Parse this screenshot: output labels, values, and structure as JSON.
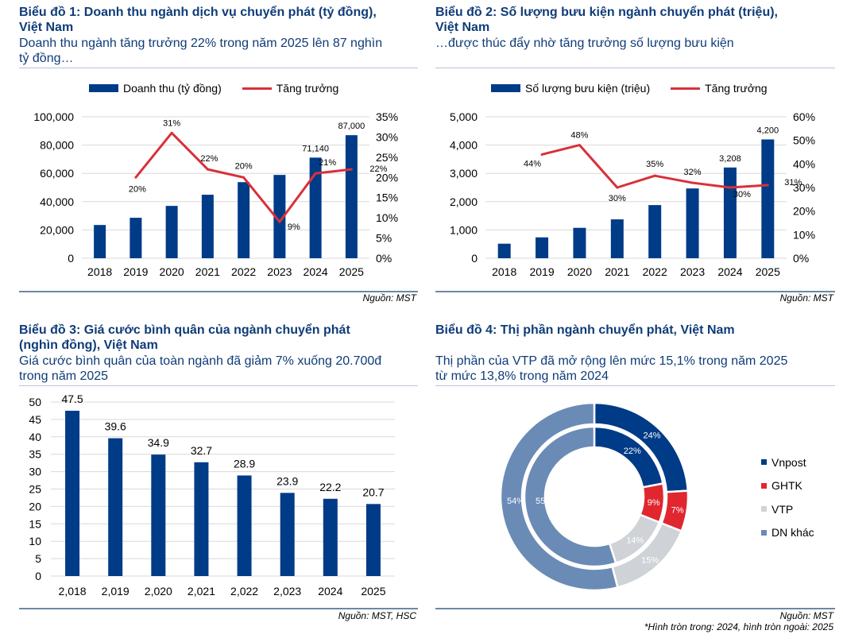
{
  "colors": {
    "bar": "#003b87",
    "line": "#d9303a",
    "grid": "#d9d9d9",
    "title": "#0f3c78",
    "vnpost": "#003b87",
    "ghtk": "#e0262f",
    "vtp": "#cfd3d8",
    "other": "#6a8bb5"
  },
  "panels": [
    {
      "title_line1": "Biểu đồ 1: Doanh thu ngành dịch vụ chuyển phát (tỷ đồng),",
      "title_line2": "Việt Nam",
      "subtitle_line1": "Doanh thu ngành tăng trưởng 22% trong năm 2025 lên 87 nghìn",
      "subtitle_line2": "tỷ đồng…",
      "source": "Nguồn: MST"
    },
    {
      "title_line1": "Biểu đồ 2: Số lượng bưu kiện ngành chuyển phát (triệu),",
      "title_line2": "Việt Nam",
      "subtitle_line1": "…được thúc đẩy nhờ tăng trưởng số lượng bưu kiện",
      "subtitle_line2": "",
      "source": "Nguồn: MST"
    },
    {
      "title_line1": "Biểu đồ 3: Giá cước bình quân của ngành chuyển phát",
      "title_line2": "(nghìn đồng), Việt Nam",
      "subtitle_line1": "Giá cước bình quân của toàn ngành đã giảm 7% xuống 20.700đ",
      "subtitle_line2": "trong năm 2025",
      "source": "Nguồn: MST, HSC"
    },
    {
      "title_line1": "Biểu đồ 4: Thị phần ngành chuyển phát, Việt Nam",
      "title_line2": "",
      "subtitle_line1": "Thị phần của VTP đã mở rộng lên mức 15,1% trong năm 2025",
      "subtitle_line2": "từ mức 13,8% trong năm 2024",
      "source": "Nguồn: MST",
      "note": "*Hình tròn trong: 2024, hình tròn ngoài: 2025"
    }
  ],
  "chart_data": [
    {
      "type": "bar",
      "title": "Biểu đồ 1: Doanh thu ngành dịch vụ chuyển phát (tỷ đồng), Việt Nam",
      "categories": [
        "2018",
        "2019",
        "2020",
        "2021",
        "2022",
        "2023",
        "2024",
        "2025"
      ],
      "series": [
        {
          "name": "Doanh thu (tỷ đồng)",
          "type": "bar",
          "axis": "left",
          "values": [
            23500,
            28600,
            37000,
            44900,
            53800,
            58900,
            71140,
            87000
          ],
          "labels": [
            "",
            "",
            "",
            "",
            "",
            "",
            "71,140",
            "87,000"
          ]
        },
        {
          "name": "Tăng trưởng",
          "type": "line",
          "axis": "right",
          "values": [
            null,
            0.2,
            0.31,
            0.22,
            0.2,
            0.09,
            0.21,
            0.22
          ],
          "labels": [
            "",
            "20%",
            "31%",
            "22%",
            "20%",
            "9%",
            "21%",
            "22%"
          ]
        }
      ],
      "yleft": {
        "min": 0,
        "max": 100000,
        "ticks": [
          "0",
          "20,000",
          "40,000",
          "60,000",
          "80,000",
          "100,000"
        ]
      },
      "yright": {
        "min": 0,
        "max": 0.35,
        "ticks": [
          "0%",
          "5%",
          "10%",
          "15%",
          "20%",
          "25%",
          "30%",
          "35%"
        ]
      },
      "legend": "top",
      "grid": true
    },
    {
      "type": "bar",
      "title": "Biểu đồ 2: Số lượng bưu kiện ngành chuyển phát (triệu), Việt Nam",
      "categories": [
        "2018",
        "2019",
        "2020",
        "2021",
        "2022",
        "2023",
        "2024",
        "2025"
      ],
      "series": [
        {
          "name": "Số lượng bưu kiện (triệu)",
          "type": "bar",
          "axis": "left",
          "values": [
            514,
            738,
            1075,
            1374,
            1879,
            2467,
            3208,
            4200
          ],
          "labels": [
            "",
            "",
            "",
            "",
            "",
            "",
            "3,208",
            "4,200"
          ]
        },
        {
          "name": "Tăng trưởng",
          "type": "line",
          "axis": "right",
          "values": [
            null,
            0.44,
            0.48,
            0.3,
            0.35,
            0.32,
            0.3,
            0.31
          ],
          "labels": [
            "",
            "44%",
            "48%",
            "30%",
            "35%",
            "32%",
            "30%",
            "31%"
          ]
        }
      ],
      "yleft": {
        "min": 0,
        "max": 5000,
        "ticks": [
          "0",
          "1,000",
          "2,000",
          "3,000",
          "4,000",
          "5,000"
        ]
      },
      "yright": {
        "min": 0,
        "max": 0.6,
        "ticks": [
          "0%",
          "10%",
          "20%",
          "30%",
          "40%",
          "50%",
          "60%"
        ]
      },
      "legend": "top",
      "grid": true
    },
    {
      "type": "bar",
      "title": "Biểu đồ 3: Giá cước bình quân của ngành chuyển phát (nghìn đồng), Việt Nam",
      "categories": [
        "2,018",
        "2,019",
        "2,020",
        "2,021",
        "2,022",
        "2,023",
        "2024",
        "2025"
      ],
      "values": [
        47.5,
        39.6,
        34.9,
        32.7,
        28.9,
        23.9,
        22.2,
        20.7
      ],
      "labels": [
        "47.5",
        "39.6",
        "34.9",
        "32.7",
        "28.9",
        "23.9",
        "22.2",
        "20.7"
      ],
      "ylim": [
        0,
        50
      ],
      "yticks": [
        "0",
        "5",
        "10",
        "15",
        "20",
        "25",
        "30",
        "35",
        "40",
        "45",
        "50"
      ],
      "grid": true
    },
    {
      "type": "pie",
      "title": "Biểu đồ 4: Thị phần ngành chuyển phát, Việt Nam",
      "categories": [
        "Vnpost",
        "GHTK",
        "VTP",
        "DN khác"
      ],
      "series": [
        {
          "name": "2024 (inner)",
          "values": [
            22,
            9,
            14,
            55
          ],
          "labels": [
            "22%",
            "9%",
            "14%",
            "55%"
          ]
        },
        {
          "name": "2025 (outer)",
          "values": [
            24,
            7,
            15,
            54
          ],
          "labels": [
            "24%",
            "7%",
            "15%",
            "54%"
          ]
        }
      ],
      "legend": "right"
    }
  ]
}
